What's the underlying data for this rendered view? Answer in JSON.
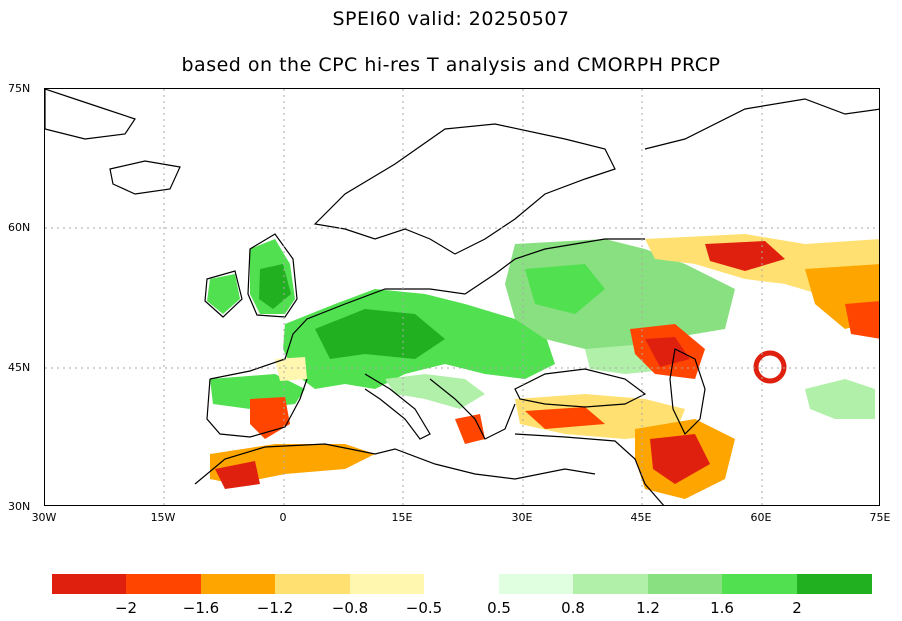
{
  "title": {
    "line1": "SPEI60  valid: 20250507",
    "line2": "based on the CPC hi-res T analysis and CMORPH PRCP"
  },
  "axes": {
    "lat_labels": [
      "75N",
      "60N",
      "45N",
      "30N"
    ],
    "lon_labels": [
      "30W",
      "15W",
      "0",
      "15E",
      "30E",
      "45E",
      "60E",
      "75E"
    ],
    "lon_range": [
      -30,
      75
    ],
    "lat_range": [
      30,
      75
    ]
  },
  "colors": {
    "dry_extreme": "#e0200f",
    "dry_severe": "#ff4500",
    "dry_moderate": "#ffa500",
    "dry_mild": "#ffe070",
    "dry_light": "#fff7b0",
    "wet_light": "#e0ffe0",
    "wet_mild": "#b0f0a8",
    "wet_moderate": "#88e080",
    "wet_severe": "#50e050",
    "wet_extreme": "#20b020",
    "border": "#999999",
    "coast": "#000000"
  },
  "legend": {
    "bins": [
      {
        "color": "#e0200f"
      },
      {
        "color": "#ff4500"
      },
      {
        "color": "#ffa500"
      },
      {
        "color": "#ffe070"
      },
      {
        "color": "#fff7b0"
      },
      {
        "color": "#ffffff"
      },
      {
        "color": "#e0ffe0"
      },
      {
        "color": "#b0f0a8"
      },
      {
        "color": "#88e080"
      },
      {
        "color": "#50e050"
      },
      {
        "color": "#20b020"
      }
    ],
    "labels": [
      "−2",
      "−1.6",
      "−1.2",
      "−0.8",
      "−0.5",
      "0.5",
      "0.8",
      "1.2",
      "1.6",
      "2"
    ]
  }
}
